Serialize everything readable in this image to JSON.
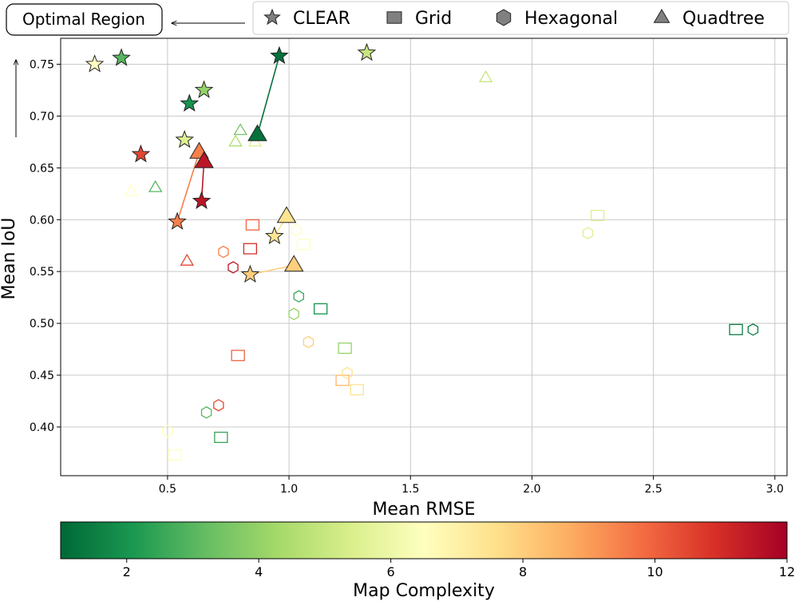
{
  "chart_data": {
    "type": "scatter",
    "xlabel": "Mean RMSE",
    "ylabel": "Mean IoU",
    "xlim": [
      0.06,
      3.05
    ],
    "ylim": [
      0.353,
      0.775
    ],
    "xticks": [
      0.5,
      1.0,
      1.5,
      2.0,
      2.5,
      3.0
    ],
    "xtick_labels": [
      "0.5",
      "1.0",
      "1.5",
      "2.0",
      "2.5",
      "3.0"
    ],
    "yticks": [
      0.4,
      0.45,
      0.5,
      0.55,
      0.6,
      0.65,
      0.7,
      0.75
    ],
    "ytick_labels": [
      "0.40",
      "0.45",
      "0.50",
      "0.55",
      "0.60",
      "0.65",
      "0.70",
      "0.75"
    ],
    "grid": true,
    "colorbar": {
      "label": "Map Complexity",
      "range": [
        1,
        12
      ],
      "ticks": [
        2,
        4,
        6,
        8,
        10,
        12
      ],
      "tick_labels": [
        "2",
        "4",
        "6",
        "8",
        "10",
        "12"
      ],
      "colormap": "RdYlGn_r"
    },
    "legend": {
      "placement": "top-right",
      "entries": [
        {
          "label": "CLEAR",
          "marker": "star"
        },
        {
          "label": "Grid",
          "marker": "square"
        },
        {
          "label": "Hexagonal",
          "marker": "hexagon"
        },
        {
          "label": "Quadtree",
          "marker": "triangle"
        }
      ]
    },
    "annotation": {
      "text": "Optimal Region",
      "arrow": "left"
    },
    "series": [
      {
        "name": "CLEAR",
        "marker": "star",
        "filled": true,
        "points": [
          {
            "x": 0.2,
            "y": 0.75,
            "c": 6.5
          },
          {
            "x": 0.31,
            "y": 0.756,
            "c": 3.0
          },
          {
            "x": 0.57,
            "y": 0.677,
            "c": 5.5
          },
          {
            "x": 0.59,
            "y": 0.712,
            "c": 2.0
          },
          {
            "x": 0.65,
            "y": 0.725,
            "c": 4.0
          },
          {
            "x": 0.96,
            "y": 0.758,
            "c": 1.2
          },
          {
            "x": 1.32,
            "y": 0.761,
            "c": 5.0
          },
          {
            "x": 0.39,
            "y": 0.663,
            "c": 10.5
          },
          {
            "x": 0.54,
            "y": 0.598,
            "c": 9.5
          },
          {
            "x": 0.64,
            "y": 0.618,
            "c": 11.5
          },
          {
            "x": 0.84,
            "y": 0.547,
            "c": 8.0
          },
          {
            "x": 0.94,
            "y": 0.584,
            "c": 7.5
          }
        ]
      },
      {
        "name": "Grid",
        "marker": "square",
        "filled": false,
        "points": [
          {
            "x": 0.85,
            "y": 0.595,
            "c": 10.0
          },
          {
            "x": 0.84,
            "y": 0.572,
            "c": 11.0
          },
          {
            "x": 1.06,
            "y": 0.576,
            "c": 6.5
          },
          {
            "x": 1.13,
            "y": 0.514,
            "c": 2.0
          },
          {
            "x": 0.79,
            "y": 0.469,
            "c": 10.0
          },
          {
            "x": 1.23,
            "y": 0.476,
            "c": 4.0
          },
          {
            "x": 1.22,
            "y": 0.445,
            "c": 8.5
          },
          {
            "x": 1.28,
            "y": 0.436,
            "c": 7.5
          },
          {
            "x": 0.72,
            "y": 0.39,
            "c": 2.5
          },
          {
            "x": 0.53,
            "y": 0.373,
            "c": 6.5
          },
          {
            "x": 2.27,
            "y": 0.604,
            "c": 5.5
          },
          {
            "x": 2.84,
            "y": 0.494,
            "c": 1.5
          }
        ]
      },
      {
        "name": "Hexagonal",
        "marker": "hexagon",
        "filled": false,
        "points": [
          {
            "x": 0.73,
            "y": 0.569,
            "c": 9.5
          },
          {
            "x": 0.77,
            "y": 0.554,
            "c": 11.5
          },
          {
            "x": 1.03,
            "y": 0.59,
            "c": 6.5
          },
          {
            "x": 1.04,
            "y": 0.526,
            "c": 2.5
          },
          {
            "x": 1.02,
            "y": 0.509,
            "c": 4.0
          },
          {
            "x": 1.08,
            "y": 0.482,
            "c": 8.0
          },
          {
            "x": 1.24,
            "y": 0.452,
            "c": 7.5
          },
          {
            "x": 0.71,
            "y": 0.421,
            "c": 10.5
          },
          {
            "x": 0.66,
            "y": 0.414,
            "c": 3.0
          },
          {
            "x": 0.5,
            "y": 0.396,
            "c": 6.5
          },
          {
            "x": 2.23,
            "y": 0.587,
            "c": 5.5
          },
          {
            "x": 2.91,
            "y": 0.494,
            "c": 1.5
          }
        ]
      },
      {
        "name": "Quadtree",
        "marker": "triangle",
        "filled": false,
        "points": [
          {
            "x": 0.8,
            "y": 0.686,
            "c": 3.5
          },
          {
            "x": 0.78,
            "y": 0.675,
            "c": 4.5
          },
          {
            "x": 0.86,
            "y": 0.675,
            "c": 5.5
          },
          {
            "x": 0.35,
            "y": 0.627,
            "c": 6.5
          },
          {
            "x": 0.45,
            "y": 0.631,
            "c": 3.0
          },
          {
            "x": 0.58,
            "y": 0.56,
            "c": 10.5
          },
          {
            "x": 1.81,
            "y": 0.737,
            "c": 5.0
          }
        ]
      },
      {
        "name": "Quadtree",
        "marker": "triangle",
        "filled": true,
        "points": [
          {
            "x": 0.87,
            "y": 0.682,
            "c": 1.2
          },
          {
            "x": 0.63,
            "y": 0.665,
            "c": 9.5
          },
          {
            "x": 0.65,
            "y": 0.656,
            "c": 11.5
          },
          {
            "x": 0.99,
            "y": 0.603,
            "c": 7.5
          },
          {
            "x": 1.02,
            "y": 0.556,
            "c": 8.0
          }
        ]
      }
    ],
    "connections": [
      {
        "from": [
          0.87,
          0.682
        ],
        "to": [
          0.96,
          0.758
        ],
        "c": 1.2
      },
      {
        "from": [
          0.63,
          0.665
        ],
        "to": [
          0.54,
          0.598
        ],
        "c": 9.5
      },
      {
        "from": [
          0.65,
          0.656
        ],
        "to": [
          0.64,
          0.618
        ],
        "c": 11.5
      },
      {
        "from": [
          0.99,
          0.603
        ],
        "to": [
          0.94,
          0.584
        ],
        "c": 7.5
      },
      {
        "from": [
          1.02,
          0.556
        ],
        "to": [
          0.84,
          0.547
        ],
        "c": 8.0
      }
    ]
  }
}
